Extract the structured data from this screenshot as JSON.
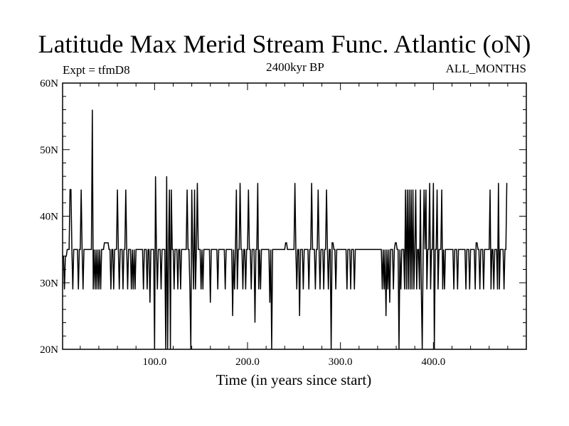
{
  "chart_data": {
    "type": "line",
    "title": "Latitude Max Merid Stream Func. Atlantic (oN)",
    "subtitle_left": "Expt = tfmD8",
    "subtitle_center": "2400kyr BP",
    "subtitle_right": "ALL_MONTHS",
    "xlabel": "Time (in years since start)",
    "ylabel": "",
    "xlim": [
      1,
      500
    ],
    "ylim": [
      20,
      60
    ],
    "x_ticks": [
      100,
      200,
      300,
      400
    ],
    "x_tick_labels": [
      "100.0",
      "200.0",
      "300.0",
      "400.0"
    ],
    "y_ticks": [
      20,
      30,
      40,
      50,
      60
    ],
    "y_tick_labels": [
      "20N",
      "30N",
      "40N",
      "50N",
      "60N"
    ],
    "line_color": "#000000",
    "series": [
      {
        "x_start": 1,
        "x_step": 1,
        "values": [
          34,
          34,
          29,
          34,
          34,
          35,
          35,
          35,
          44,
          44,
          35,
          29,
          35,
          35,
          35,
          35,
          35,
          29,
          35,
          35,
          44,
          35,
          29,
          35,
          35,
          35,
          35,
          35,
          35,
          35,
          35,
          35,
          56,
          29,
          35,
          29,
          35,
          29,
          35,
          29,
          35,
          29,
          35,
          35,
          35,
          36,
          36,
          36,
          36,
          36,
          35,
          35,
          29,
          35,
          35,
          29,
          35,
          35,
          35,
          44,
          35,
          29,
          35,
          35,
          35,
          29,
          35,
          35,
          44,
          35,
          29,
          35,
          35,
          35,
          29,
          35,
          29,
          35,
          29,
          35,
          35,
          35,
          35,
          35,
          35,
          35,
          35,
          29,
          35,
          35,
          35,
          29,
          35,
          35,
          27,
          35,
          35,
          35,
          35,
          20,
          46,
          35,
          29,
          35,
          35,
          35,
          29,
          35,
          35,
          35,
          35,
          20,
          46,
          20,
          35,
          44,
          20,
          44,
          35,
          35,
          29,
          35,
          35,
          35,
          29,
          35,
          35,
          29,
          35,
          35,
          35,
          35,
          35,
          35,
          44,
          35,
          35,
          29,
          20,
          44,
          35,
          29,
          44,
          29,
          35,
          45,
          35,
          35,
          35,
          29,
          35,
          29,
          35,
          35,
          35,
          35,
          35,
          35,
          35,
          27,
          35,
          35,
          35,
          35,
          35,
          35,
          35,
          29,
          35,
          35,
          35,
          35,
          35,
          35,
          35,
          29,
          35,
          35,
          35,
          35,
          35,
          35,
          35,
          25,
          35,
          29,
          35,
          44,
          29,
          35,
          35,
          45,
          35,
          35,
          29,
          35,
          35,
          29,
          35,
          35,
          44,
          35,
          35,
          29,
          35,
          35,
          35,
          24,
          35,
          35,
          45,
          29,
          35,
          29,
          35,
          35,
          35,
          35,
          35,
          35,
          35,
          35,
          35,
          27,
          35,
          20,
          35,
          35,
          35,
          35,
          35,
          35,
          35,
          35,
          35,
          35,
          35,
          35,
          35,
          35,
          36,
          36,
          35,
          35,
          35,
          35,
          35,
          35,
          35,
          35,
          45,
          35,
          29,
          35,
          35,
          25,
          35,
          35,
          35,
          29,
          35,
          35,
          35,
          35,
          35,
          29,
          35,
          35,
          45,
          35,
          35,
          35,
          29,
          35,
          35,
          44,
          35,
          29,
          35,
          35,
          35,
          29,
          35,
          35,
          44,
          35,
          29,
          35,
          35,
          20,
          36,
          36,
          35,
          35,
          29,
          35,
          35,
          35,
          35,
          35,
          35,
          35,
          35,
          35,
          35,
          35,
          29,
          35,
          35,
          35,
          29,
          35,
          35,
          35,
          29,
          35,
          35,
          35,
          35,
          35,
          35,
          35,
          35,
          35,
          35,
          35,
          35,
          35,
          35,
          35,
          35,
          35,
          35,
          35,
          35,
          35,
          35,
          35,
          35,
          35,
          35,
          35,
          35,
          35,
          29,
          35,
          29,
          35,
          25,
          35,
          29,
          35,
          27,
          35,
          35,
          35,
          29,
          35,
          36,
          36,
          35,
          35,
          20,
          35,
          29,
          35,
          35,
          35,
          29,
          44,
          29,
          44,
          29,
          44,
          29,
          44,
          29,
          44,
          29,
          35,
          44,
          29,
          35,
          35,
          29,
          44,
          29,
          20,
          35,
          44,
          35,
          44,
          29,
          35,
          35,
          45,
          29,
          35,
          35,
          45,
          20,
          35,
          35,
          44,
          29,
          35,
          35,
          35,
          44,
          29,
          35,
          29,
          35,
          35,
          35,
          35,
          35,
          35,
          35,
          35,
          35,
          29,
          35,
          35,
          35,
          29,
          35,
          35,
          35,
          35,
          35,
          35,
          35,
          35,
          29,
          35,
          35,
          35,
          29,
          35,
          35,
          35,
          35,
          35,
          29,
          36,
          36,
          35,
          35,
          29,
          35,
          35,
          35,
          29,
          35,
          35,
          35,
          35,
          35,
          35,
          44,
          29,
          35,
          35,
          29,
          35,
          35,
          35,
          29,
          45,
          29,
          35,
          35,
          35,
          35,
          29,
          35,
          35,
          45
        ]
      }
    ]
  }
}
